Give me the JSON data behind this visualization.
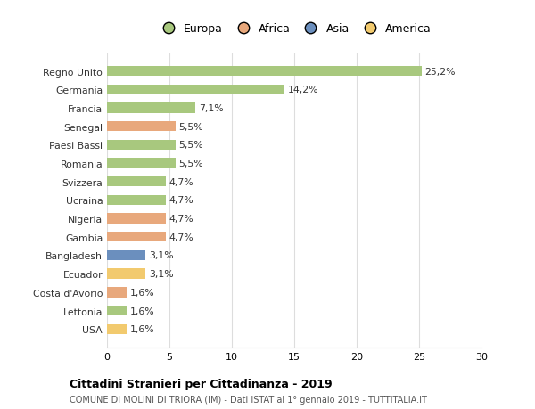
{
  "categories": [
    "Regno Unito",
    "Germania",
    "Francia",
    "Senegal",
    "Paesi Bassi",
    "Romania",
    "Svizzera",
    "Ucraina",
    "Nigeria",
    "Gambia",
    "Bangladesh",
    "Ecuador",
    "Costa d'Avorio",
    "Lettonia",
    "USA"
  ],
  "values": [
    25.2,
    14.2,
    7.1,
    5.5,
    5.5,
    5.5,
    4.7,
    4.7,
    4.7,
    4.7,
    3.1,
    3.1,
    1.6,
    1.6,
    1.6
  ],
  "labels": [
    "25,2%",
    "14,2%",
    "7,1%",
    "5,5%",
    "5,5%",
    "5,5%",
    "4,7%",
    "4,7%",
    "4,7%",
    "4,7%",
    "3,1%",
    "3,1%",
    "1,6%",
    "1,6%",
    "1,6%"
  ],
  "bar_colors": [
    "#a8c87e",
    "#a8c87e",
    "#a8c87e",
    "#e8a87c",
    "#a8c87e",
    "#a8c87e",
    "#a8c87e",
    "#a8c87e",
    "#e8a87c",
    "#e8a87c",
    "#6b8fbe",
    "#f2ca6e",
    "#e8a87c",
    "#a8c87e",
    "#f2ca6e"
  ],
  "title": "Cittadini Stranieri per Cittadinanza - 2019",
  "subtitle": "COMUNE DI MOLINI DI TRIORA (IM) - Dati ISTAT al 1° gennaio 2019 - TUTTITALIA.IT",
  "xlim": [
    0,
    30
  ],
  "xticks": [
    0,
    5,
    10,
    15,
    20,
    25,
    30
  ],
  "background_color": "#ffffff",
  "grid_color": "#dddddd",
  "legend_labels": [
    "Europa",
    "Africa",
    "Asia",
    "America"
  ],
  "legend_colors": [
    "#a8c87e",
    "#e8a87c",
    "#6b8fbe",
    "#f2ca6e"
  ]
}
